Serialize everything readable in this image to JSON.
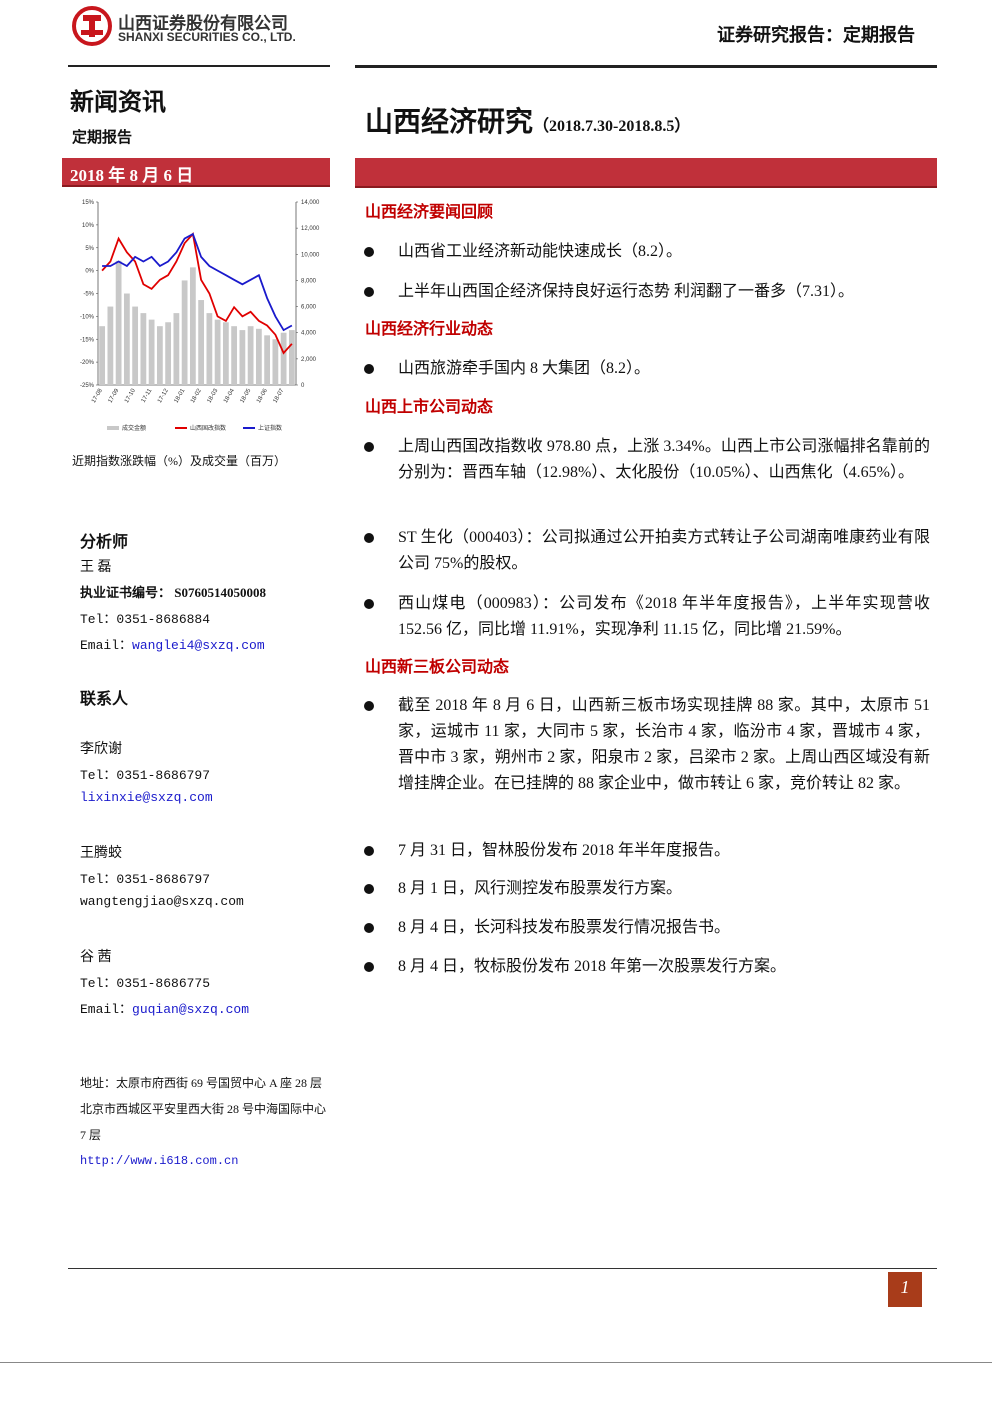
{
  "header": {
    "company_cn": "山西证券股份有限公司",
    "company_en": "SHANXI SECURITIES CO., LTD.",
    "report_type": "证券研究报告：定期报告"
  },
  "sidebar": {
    "section": "新闻资讯",
    "subsection": "定期报告",
    "date": "2018 年 8 月 6 日",
    "chart_caption": "近期指数涨跌幅（%）及成交量（百万）",
    "analyst_heading": "分析师",
    "analyst_name": "王 磊",
    "cert": "执业证书编号： S0760514050008",
    "analyst_tel": "Tel：0351-8686884",
    "analyst_email_label": "Email：",
    "analyst_email": "wanglei4@sxzq.com",
    "contacts_heading": "联系人",
    "contacts": [
      {
        "name": "李欣谢",
        "tel": "Tel：0351-8686797",
        "email": "lixinxie@sxzq.com"
      },
      {
        "name": "王腾蛟",
        "tel": "Tel：0351-8686797",
        "email": "wangtengjiao@sxzq.com"
      },
      {
        "name": "谷 茜",
        "tel": "Tel：0351-8686775",
        "email_label": "Email：",
        "email": "guqian@sxzq.com"
      }
    ],
    "address": [
      "地址：太原市府西街 69 号国贸中心 A 座 28 层",
      "北京市西城区平安里西大街 28 号中海国际中心 7 层"
    ],
    "url": "http://www.i618.com.cn"
  },
  "chart_data": {
    "type": "combo",
    "categories": [
      "17-08",
      null,
      "17-09",
      null,
      "17-10",
      null,
      "17-11",
      null,
      "17-12",
      null,
      "18-01",
      null,
      "18-02",
      null,
      "18-03",
      null,
      "18-04",
      null,
      "18-05",
      null,
      "18-06",
      null,
      "18-07",
      null
    ],
    "series": [
      {
        "name": "成交金额",
        "kind": "bar",
        "axis": "y2",
        "color": "#c8c8c8",
        "values": [
          4500,
          6000,
          9500,
          7000,
          6000,
          5500,
          5000,
          4500,
          4800,
          5500,
          8000,
          9000,
          6500,
          5500,
          5000,
          4800,
          4500,
          4200,
          4500,
          4300,
          3800,
          3500,
          4000,
          4200
        ]
      },
      {
        "name": "山西国改指数",
        "kind": "line",
        "color": "#e00000",
        "values": [
          0,
          2,
          7,
          4,
          2,
          -3,
          -4,
          -2,
          -1,
          2,
          6,
          8,
          -2,
          -5,
          -10,
          -11,
          -8,
          -10,
          -9,
          -11,
          -12,
          -14,
          -18,
          -16
        ]
      },
      {
        "name": "上证指数",
        "kind": "line",
        "color": "#1a1acc",
        "values": [
          1,
          1,
          2,
          1,
          3,
          2,
          3,
          1,
          2,
          4,
          7,
          8,
          3,
          1,
          0,
          -1,
          -2,
          -3,
          -2,
          -1,
          -6,
          -10,
          -13,
          -12
        ]
      }
    ],
    "ylim": [
      -25,
      15
    ],
    "yticks": [
      {
        "value": 15,
        "label": "15%"
      },
      {
        "value": 10,
        "label": "10%"
      },
      {
        "value": 5,
        "label": "5%"
      },
      {
        "value": 0,
        "label": "0%"
      },
      {
        "value": -5,
        "label": "-5%"
      },
      {
        "value": -10,
        "label": "-10%"
      },
      {
        "value": -15,
        "label": "-15%"
      },
      {
        "value": -20,
        "label": "-20%"
      },
      {
        "value": -25,
        "label": "-25%"
      }
    ],
    "y2lim": [
      0,
      14000
    ],
    "y2ticks": [
      {
        "value": 14000,
        "label": "14,000"
      },
      {
        "value": 12000,
        "label": "12,000"
      },
      {
        "value": 10000,
        "label": "10,000"
      },
      {
        "value": 8000,
        "label": "8,000"
      },
      {
        "value": 6000,
        "label": "6,000"
      },
      {
        "value": 4000,
        "label": "4,000"
      },
      {
        "value": 2000,
        "label": "2,000"
      },
      0
    ]
  },
  "report": {
    "title": "山西经济研究",
    "period": "（2018.7.30-2018.8.5）",
    "sections": [
      {
        "heading": "山西经济要闻回顾",
        "items": [
          "山西省工业经济新动能快速成长（8.2）。",
          "上半年山西国企经济保持良好运行态势 利润翻了一番多（7.31）。"
        ]
      },
      {
        "heading": "山西经济行业动态",
        "items": [
          "山西旅游牵手国内 8 大集团（8.2）。"
        ]
      },
      {
        "heading": "山西上市公司动态",
        "items": [
          "上周山西国改指数收 978.80 点，上涨 3.34%。山西上市公司涨幅排名靠前的分别为：晋西车轴（12.98%）、太化股份（10.05%）、山西焦化（4.65%）。",
          "ST 生化（000403）：公司拟通过公开拍卖方式转让子公司湖南唯康药业有限公司 75%的股权。",
          "西山煤电（000983）：公司发布《2018 年半年度报告》，上半年实现营收 152.56 亿，同比增 11.91%，实现净利 11.15 亿，同比增 21.59%。"
        ]
      },
      {
        "heading": "山西新三板公司动态",
        "items": [
          "截至 2018 年 8 月 6 日，山西新三板市场实现挂牌 88 家。其中，太原市 51 家，运城市 11 家，大同市 5 家，长治市 4 家，临汾市 4 家，晋城市 4 家，晋中市 3 家，朔州市 2 家，阳泉市 2 家，吕梁市 2 家。上周山西区域没有新增挂牌企业。在已挂牌的 88 家企业中，做市转让 6 家，竞价转让 82 家。",
          "7 月 31 日，智林股份发布 2018 年半年度报告。",
          "8 月 1 日，风行测控发布股票发行方案。",
          "8 月 4 日，长河科技发布股票发行情况报告书。",
          "8 月 4 日，牧标股份发布 2018 年第一次股票发行方案。"
        ]
      }
    ]
  },
  "footer": {
    "page": "1"
  }
}
